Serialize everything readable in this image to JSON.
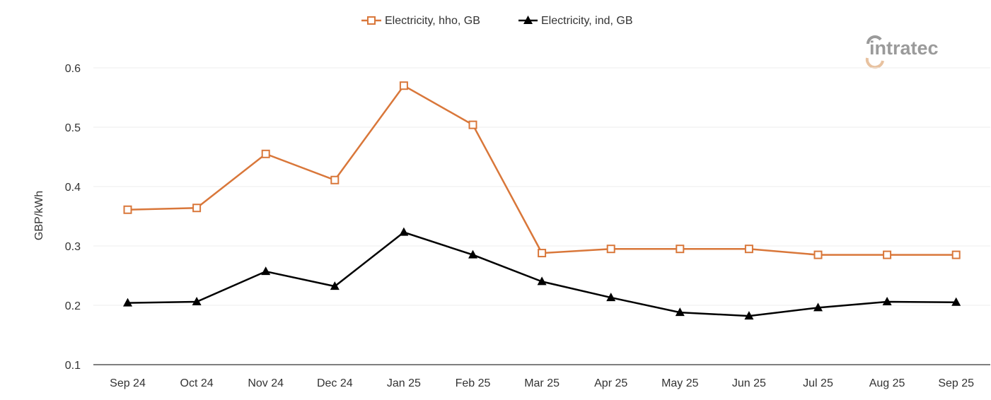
{
  "logo": {
    "text": "intratec"
  },
  "chart_data": {
    "type": "line",
    "title": "",
    "xlabel": "",
    "ylabel": "GBP/kWh",
    "ylim": [
      0.1,
      0.6
    ],
    "yticks": [
      "0.1",
      "0.2",
      "0.3",
      "0.4",
      "0.5",
      "0.6"
    ],
    "grid": true,
    "legend_position": "top",
    "categories": [
      "Sep 24",
      "Oct 24",
      "Nov 24",
      "Dec 24",
      "Jan 25",
      "Feb 25",
      "Mar 25",
      "Apr 25",
      "May 25",
      "Jun 25",
      "Jul 25",
      "Aug 25",
      "Sep 25"
    ],
    "series": [
      {
        "name": "Electricity, hho, GB",
        "color": "#d9773a",
        "marker": "square-open",
        "values": [
          0.361,
          0.364,
          0.455,
          0.411,
          0.57,
          0.504,
          0.288,
          0.295,
          0.295,
          0.295,
          0.285,
          0.285,
          0.285
        ]
      },
      {
        "name": "Electricity, ind, GB",
        "color": "#000000",
        "marker": "triangle",
        "values": [
          0.204,
          0.206,
          0.257,
          0.232,
          0.323,
          0.285,
          0.24,
          0.213,
          0.188,
          0.182,
          0.196,
          0.206,
          0.205
        ]
      }
    ]
  }
}
